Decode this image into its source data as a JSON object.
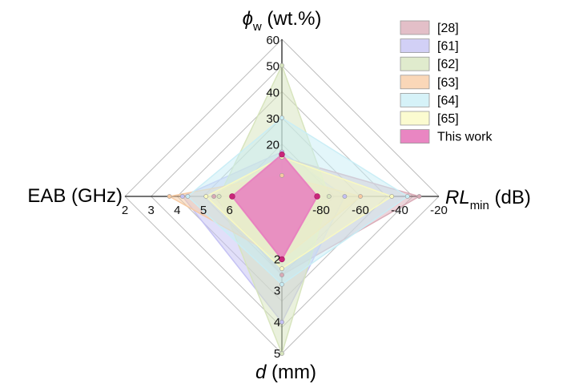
{
  "chart_data": {
    "type": "radar",
    "axes": [
      {
        "id": "phi",
        "label_symbol": "ϕ",
        "label_sub": "w",
        "label_rest": " (wt.%)",
        "ticks": [
          "20",
          "30",
          "40",
          "50",
          "60"
        ],
        "range": [
          0,
          60
        ]
      },
      {
        "id": "rl",
        "label_symbol": "RL",
        "label_sub": "min",
        "label_rest": " (dB)",
        "ticks": [
          "-80",
          "-60",
          "-40",
          "-20"
        ],
        "range": [
          -100,
          -20
        ]
      },
      {
        "id": "d",
        "label_symbol": "d",
        "label_rest": " (mm)",
        "ticks": [
          "2",
          "3",
          "4",
          "5"
        ],
        "range": [
          0,
          5
        ]
      },
      {
        "id": "eab",
        "label_text": "EAB (GHz)",
        "ticks": [
          "2",
          "3",
          "4",
          "5",
          "6"
        ],
        "range": [
          8,
          2
        ]
      }
    ],
    "series": [
      {
        "name": "[28]",
        "color": "#d9a9b5",
        "values": {
          "phi": 15,
          "rl": -30,
          "d": 2.5,
          "eab": 5.4
        }
      },
      {
        "name": "[61]",
        "color": "#c3c0f3",
        "values": {
          "phi": 17,
          "rl": -68,
          "d": 4.0,
          "eab": 4.2
        }
      },
      {
        "name": "[62]",
        "color": "#d6e4bc",
        "values": {
          "phi": 50,
          "rl": -76,
          "d": 5.0,
          "eab": 5.6
        }
      },
      {
        "name": "[63]",
        "color": "#f8c9a0",
        "values": {
          "phi": 8,
          "rl": -60,
          "d": 2.0,
          "eab": 3.7
        }
      },
      {
        "name": "[64]",
        "color": "#c8edf5",
        "values": {
          "phi": 30,
          "rl": -36,
          "d": 2.8,
          "eab": 4.4
        }
      },
      {
        "name": "[65]",
        "color": "#fafac0",
        "values": {
          "phi": 15,
          "rl": -44,
          "d": 2.3,
          "eab": 5.1
        }
      },
      {
        "name": "This work",
        "color": "#e880bf",
        "values": {
          "phi": 16,
          "rl": -82,
          "d": 2.0,
          "eab": 6.1
        }
      }
    ],
    "legend_position": "top-right"
  }
}
